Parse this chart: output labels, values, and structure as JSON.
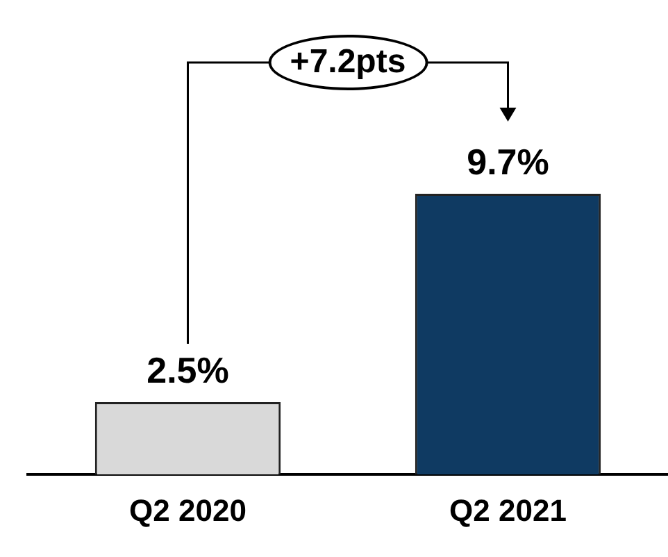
{
  "chart_data": {
    "type": "bar",
    "categories": [
      "Q2 2020",
      "Q2 2021"
    ],
    "values": [
      2.5,
      9.7
    ],
    "colors": [
      "#d9d9d9",
      "#0f3a62"
    ],
    "value_labels": [
      "2.5%",
      "9.7%"
    ],
    "annotations": [
      "+7.2pts"
    ],
    "grid": false,
    "legend": false
  }
}
